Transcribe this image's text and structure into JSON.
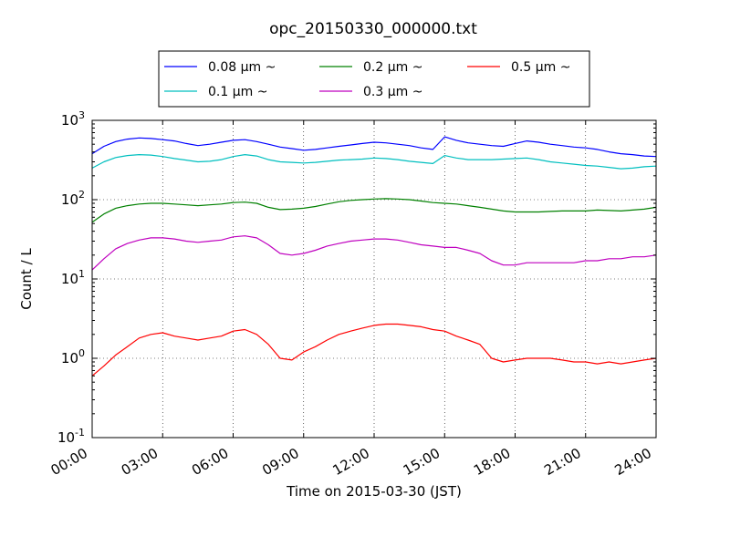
{
  "chart_data": {
    "type": "line",
    "title": "opc_20150330_000000.txt",
    "xlabel": "Time on 2015-03-30 (JST)",
    "ylabel": "Count / L",
    "yscale": "log",
    "xlim": [
      "00:00",
      "24:00"
    ],
    "ylim": [
      0.1,
      1000
    ],
    "grid": true,
    "legend_position": "top",
    "x_ticks": [
      "00:00",
      "03:00",
      "06:00",
      "09:00",
      "12:00",
      "15:00",
      "18:00",
      "21:00",
      "24:00"
    ],
    "y_ticks": [
      {
        "base": "10",
        "exp": "-1"
      },
      {
        "base": "10",
        "exp": "0"
      },
      {
        "base": "10",
        "exp": "1"
      },
      {
        "base": "10",
        "exp": "2"
      },
      {
        "base": "10",
        "exp": "3"
      }
    ],
    "x": [
      "00:00",
      "00:30",
      "01:00",
      "01:30",
      "02:00",
      "02:30",
      "03:00",
      "03:30",
      "04:00",
      "04:30",
      "05:00",
      "05:30",
      "06:00",
      "06:30",
      "07:00",
      "07:30",
      "08:00",
      "08:30",
      "09:00",
      "09:30",
      "10:00",
      "10:30",
      "11:00",
      "11:30",
      "12:00",
      "12:30",
      "13:00",
      "13:30",
      "14:00",
      "14:30",
      "15:00",
      "15:30",
      "16:00",
      "16:30",
      "17:00",
      "17:30",
      "18:00",
      "18:30",
      "19:00",
      "19:30",
      "20:00",
      "20:30",
      "21:00",
      "21:30",
      "22:00",
      "22:30",
      "23:00",
      "23:30",
      "24:00"
    ],
    "series": [
      {
        "name": "0.08 μm ~",
        "color": "#0000ff",
        "values": [
          380,
          470,
          540,
          580,
          600,
          590,
          570,
          550,
          510,
          480,
          500,
          530,
          560,
          570,
          540,
          500,
          460,
          440,
          420,
          430,
          450,
          470,
          490,
          510,
          530,
          520,
          500,
          480,
          450,
          430,
          620,
          560,
          520,
          500,
          480,
          470,
          510,
          550,
          530,
          500,
          480,
          460,
          450,
          430,
          400,
          380,
          370,
          355,
          350
        ]
      },
      {
        "name": "0.1 μm ~",
        "color": "#00bfbf",
        "values": [
          250,
          300,
          340,
          360,
          370,
          365,
          350,
          330,
          315,
          300,
          305,
          320,
          350,
          370,
          355,
          320,
          300,
          295,
          290,
          295,
          305,
          315,
          320,
          325,
          335,
          330,
          320,
          305,
          295,
          285,
          360,
          335,
          320,
          320,
          320,
          325,
          330,
          335,
          320,
          300,
          290,
          280,
          270,
          265,
          255,
          245,
          250,
          260,
          265
        ]
      },
      {
        "name": "0.2 μm ~",
        "color": "#008000",
        "values": [
          52,
          66,
          78,
          84,
          88,
          90,
          90,
          88,
          86,
          84,
          86,
          88,
          92,
          93,
          90,
          80,
          75,
          76,
          78,
          82,
          88,
          94,
          98,
          100,
          102,
          103,
          102,
          100,
          96,
          92,
          90,
          88,
          84,
          80,
          76,
          72,
          70,
          70,
          70,
          71,
          72,
          72,
          72,
          74,
          73,
          72,
          74,
          76,
          80
        ]
      },
      {
        "name": "0.3 μm ~",
        "color": "#bf00bf",
        "values": [
          13,
          18,
          24,
          28,
          31,
          33,
          33,
          32,
          30,
          29,
          30,
          31,
          34,
          35,
          33,
          27,
          21,
          20,
          21,
          23,
          26,
          28,
          30,
          31,
          32,
          32,
          31,
          29,
          27,
          26,
          25,
          25,
          23,
          21,
          17,
          15,
          15,
          16,
          16,
          16,
          16,
          16,
          17,
          17,
          18,
          18,
          19,
          19,
          20
        ]
      },
      {
        "name": "0.5 μm ~",
        "color": "#ff0000",
        "values": [
          0.6,
          0.8,
          1.1,
          1.4,
          1.8,
          2.0,
          2.1,
          1.9,
          1.8,
          1.7,
          1.8,
          1.9,
          2.2,
          2.3,
          2.0,
          1.5,
          1.0,
          0.95,
          1.2,
          1.4,
          1.7,
          2.0,
          2.2,
          2.4,
          2.6,
          2.7,
          2.7,
          2.6,
          2.5,
          2.3,
          2.2,
          1.9,
          1.7,
          1.5,
          1.0,
          0.9,
          0.95,
          1.0,
          1.0,
          1.0,
          0.95,
          0.9,
          0.9,
          0.85,
          0.9,
          0.85,
          0.9,
          0.95,
          1.0
        ]
      }
    ]
  }
}
